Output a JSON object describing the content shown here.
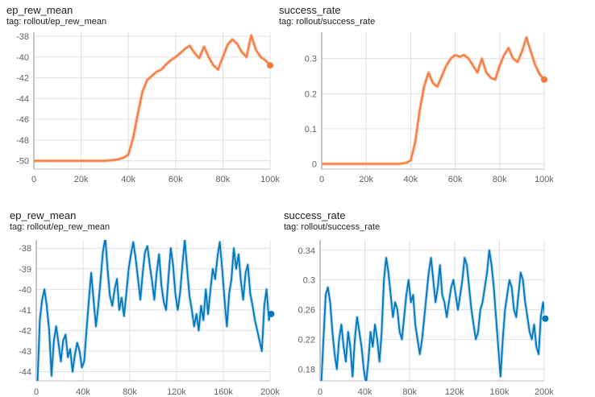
{
  "panels": [
    {
      "title": "ep_rew_mean",
      "tag": "tag: rollout/ep_rew_mean"
    },
    {
      "title": "success_rate",
      "tag": "tag: rollout/success_rate"
    },
    {
      "title": "ep_rew_mean",
      "tag": "tag: rollout/ep_rew_mean"
    },
    {
      "title": "success_rate",
      "tag": "tag: rollout/success_rate"
    }
  ],
  "chart_data": [
    {
      "type": "line",
      "title": "ep_rew_mean",
      "xlim": [
        0,
        100000
      ],
      "ylim": [
        -50.8,
        -37.6
      ],
      "xticks": [
        0,
        20000,
        40000,
        60000,
        80000,
        100000
      ],
      "xtick_labels": [
        "0",
        "20k",
        "40k",
        "60k",
        "80k",
        "100k"
      ],
      "yticks": [
        -50,
        -48,
        -46,
        -44,
        -42,
        -40,
        -38
      ],
      "ytick_labels": [
        "-50",
        "-48",
        "-46",
        "-44",
        "-42",
        "-40",
        "-38"
      ],
      "color": "#f4773d",
      "band_color": "#f9c1a3",
      "grid": true,
      "series": [
        {
          "x": [
            0,
            10000,
            20000,
            30000,
            35000,
            38000,
            40000,
            42000,
            44000,
            46000,
            48000,
            50000,
            52000,
            54000,
            56000,
            58000,
            60000,
            62000,
            64000,
            66000,
            68000,
            70000,
            72000,
            74000,
            76000,
            78000,
            80000,
            82000,
            84000,
            86000,
            88000,
            90000,
            92000,
            94000,
            96000,
            98000,
            100000
          ],
          "y": [
            -50,
            -50,
            -50,
            -50,
            -49.9,
            -49.7,
            -49.4,
            -47.8,
            -45.5,
            -43.3,
            -42.2,
            -41.8,
            -41.4,
            -41.2,
            -40.7,
            -40.3,
            -40.0,
            -39.6,
            -39.2,
            -38.9,
            -39.6,
            -40.1,
            -39.0,
            -40.0,
            -40.8,
            -41.2,
            -40.0,
            -38.8,
            -38.3,
            -38.7,
            -39.5,
            -40.0,
            -37.9,
            -39.3,
            -40.0,
            -40.3,
            -40.8
          ]
        }
      ]
    },
    {
      "type": "line",
      "title": "success_rate",
      "xlim": [
        0,
        100000
      ],
      "ylim": [
        -0.015,
        0.375
      ],
      "xticks": [
        0,
        20000,
        40000,
        60000,
        80000,
        100000
      ],
      "xtick_labels": [
        "0",
        "20k",
        "40k",
        "60k",
        "80k",
        "100k"
      ],
      "yticks": [
        0,
        0.1,
        0.2,
        0.3
      ],
      "ytick_labels": [
        "0",
        "0.1",
        "0.2",
        "0.3"
      ],
      "color": "#f4773d",
      "band_color": "#f9c1a3",
      "grid": true,
      "series": [
        {
          "x": [
            0,
            10000,
            20000,
            30000,
            35000,
            38000,
            40000,
            42000,
            44000,
            46000,
            48000,
            50000,
            52000,
            54000,
            56000,
            58000,
            60000,
            62000,
            64000,
            66000,
            68000,
            70000,
            72000,
            74000,
            76000,
            78000,
            80000,
            82000,
            84000,
            86000,
            88000,
            90000,
            92000,
            94000,
            96000,
            98000,
            100000
          ],
          "y": [
            0,
            0,
            0,
            0,
            0,
            0.003,
            0.01,
            0.06,
            0.15,
            0.22,
            0.26,
            0.23,
            0.22,
            0.25,
            0.28,
            0.3,
            0.31,
            0.305,
            0.31,
            0.3,
            0.28,
            0.26,
            0.3,
            0.26,
            0.245,
            0.24,
            0.28,
            0.31,
            0.33,
            0.3,
            0.29,
            0.32,
            0.36,
            0.32,
            0.28,
            0.255,
            0.24
          ]
        }
      ]
    },
    {
      "type": "line",
      "title": "ep_rew_mean",
      "xlim": [
        0,
        200000
      ],
      "ylim": [
        -44.45,
        -37.6
      ],
      "xticks": [
        0,
        40000,
        80000,
        120000,
        160000,
        200000
      ],
      "xtick_labels": [
        "0",
        "40k",
        "80k",
        "120k",
        "160k",
        "200k"
      ],
      "yticks": [
        -44,
        -43,
        -42,
        -41,
        -40,
        -39,
        -38
      ],
      "ytick_labels": [
        "-44",
        "-43",
        "-42",
        "-41",
        "-40",
        "-39",
        "-38"
      ],
      "color": "#0077bb",
      "band_color": "#b9daf0",
      "grid": true,
      "series": [
        {
          "x": [
            1000,
            3000,
            5000,
            7000,
            9000,
            11000,
            13000,
            15000,
            17000,
            19000,
            21000,
            23000,
            25000,
            27000,
            29000,
            31000,
            33000,
            35000,
            37000,
            39000,
            41000,
            43000,
            45000,
            47000,
            49000,
            51000,
            53000,
            55000,
            57000,
            59000,
            61000,
            63000,
            65000,
            67000,
            69000,
            71000,
            73000,
            75000,
            77000,
            79000,
            81000,
            83000,
            85000,
            87000,
            89000,
            91000,
            93000,
            95000,
            97000,
            99000,
            101000,
            103000,
            105000,
            107000,
            109000,
            111000,
            113000,
            115000,
            117000,
            119000,
            121000,
            123000,
            125000,
            127000,
            129000,
            131000,
            133000,
            135000,
            137000,
            139000,
            141000,
            143000,
            145000,
            147000,
            149000,
            151000,
            153000,
            155000,
            157000,
            159000,
            161000,
            163000,
            165000,
            167000,
            169000,
            171000,
            173000,
            175000,
            177000,
            179000,
            181000,
            183000,
            185000,
            187000,
            189000,
            191000,
            193000,
            195000,
            197000,
            199000,
            201000
          ],
          "y": [
            -44.5,
            -41.5,
            -40.5,
            -40.0,
            -40.8,
            -42.0,
            -44.2,
            -42.5,
            -41.8,
            -42.6,
            -43.5,
            -42.5,
            -42.2,
            -43.3,
            -42.9,
            -44.0,
            -43.2,
            -42.6,
            -43.0,
            -43.8,
            -43.5,
            -42.0,
            -40.5,
            -39.2,
            -40.5,
            -41.8,
            -40.8,
            -39.5,
            -38.2,
            -37.5,
            -39.0,
            -40.3,
            -40.8,
            -40.0,
            -39.5,
            -41.0,
            -40.4,
            -41.3,
            -40.2,
            -39.0,
            -38.3,
            -37.7,
            -38.5,
            -39.5,
            -40.5,
            -39.2,
            -38.2,
            -37.9,
            -38.8,
            -39.6,
            -40.5,
            -39.2,
            -38.3,
            -39.8,
            -40.6,
            -41.0,
            -39.5,
            -38.0,
            -38.8,
            -40.2,
            -41.0,
            -40.2,
            -38.8,
            -37.6,
            -39.0,
            -40.3,
            -41.0,
            -41.8,
            -41.2,
            -42.0,
            -40.8,
            -41.5,
            -40.0,
            -41.2,
            -40.0,
            -39.0,
            -39.5,
            -38.4,
            -37.7,
            -39.0,
            -40.5,
            -41.8,
            -40.2,
            -39.5,
            -38.0,
            -39.0,
            -38.3,
            -39.6,
            -40.5,
            -39.2,
            -38.8,
            -40.2,
            -40.8,
            -41.5,
            -42.0,
            -42.5,
            -43.0,
            -40.8,
            -40.0,
            -41.5,
            -41.2
          ]
        }
      ]
    },
    {
      "type": "line",
      "title": "success_rate",
      "xlim": [
        0,
        200000
      ],
      "ylim": [
        0.164,
        0.354
      ],
      "xticks": [
        0,
        40000,
        80000,
        120000,
        160000,
        200000
      ],
      "xtick_labels": [
        "0",
        "40k",
        "80k",
        "120k",
        "160k",
        "200k"
      ],
      "yticks": [
        0.18,
        0.22,
        0.26,
        0.3,
        0.34
      ],
      "ytick_labels": [
        "0.18",
        "0.22",
        "0.26",
        "0.3",
        "0.34"
      ],
      "color": "#0077bb",
      "band_color": "#b9daf0",
      "grid": true,
      "series": [
        {
          "x": [
            1000,
            3000,
            5000,
            7000,
            9000,
            11000,
            13000,
            15000,
            17000,
            19000,
            21000,
            23000,
            25000,
            27000,
            29000,
            31000,
            33000,
            35000,
            37000,
            39000,
            41000,
            43000,
            45000,
            47000,
            49000,
            51000,
            53000,
            55000,
            57000,
            59000,
            61000,
            63000,
            65000,
            67000,
            69000,
            71000,
            73000,
            75000,
            77000,
            79000,
            81000,
            83000,
            85000,
            87000,
            89000,
            91000,
            93000,
            95000,
            97000,
            99000,
            101000,
            103000,
            105000,
            107000,
            109000,
            111000,
            113000,
            115000,
            117000,
            119000,
            121000,
            123000,
            125000,
            127000,
            129000,
            131000,
            133000,
            135000,
            137000,
            139000,
            141000,
            143000,
            145000,
            147000,
            149000,
            151000,
            153000,
            155000,
            157000,
            159000,
            161000,
            163000,
            165000,
            167000,
            169000,
            171000,
            173000,
            175000,
            177000,
            179000,
            181000,
            183000,
            185000,
            187000,
            189000,
            191000,
            193000,
            195000,
            197000,
            199000,
            201000
          ],
          "y": [
            0.16,
            0.22,
            0.28,
            0.29,
            0.27,
            0.23,
            0.2,
            0.18,
            0.22,
            0.24,
            0.21,
            0.19,
            0.23,
            0.21,
            0.17,
            0.22,
            0.25,
            0.23,
            0.21,
            0.18,
            0.16,
            0.19,
            0.23,
            0.21,
            0.24,
            0.22,
            0.19,
            0.23,
            0.3,
            0.33,
            0.31,
            0.28,
            0.25,
            0.27,
            0.26,
            0.23,
            0.22,
            0.25,
            0.28,
            0.3,
            0.27,
            0.28,
            0.24,
            0.22,
            0.2,
            0.22,
            0.25,
            0.28,
            0.31,
            0.33,
            0.3,
            0.27,
            0.29,
            0.32,
            0.28,
            0.27,
            0.25,
            0.27,
            0.29,
            0.3,
            0.28,
            0.26,
            0.28,
            0.3,
            0.33,
            0.32,
            0.29,
            0.26,
            0.24,
            0.22,
            0.23,
            0.26,
            0.27,
            0.29,
            0.31,
            0.34,
            0.32,
            0.29,
            0.25,
            0.21,
            0.17,
            0.22,
            0.26,
            0.28,
            0.3,
            0.29,
            0.26,
            0.25,
            0.28,
            0.31,
            0.3,
            0.27,
            0.25,
            0.23,
            0.22,
            0.24,
            0.21,
            0.2,
            0.25,
            0.27,
            0.248
          ]
        }
      ]
    }
  ]
}
